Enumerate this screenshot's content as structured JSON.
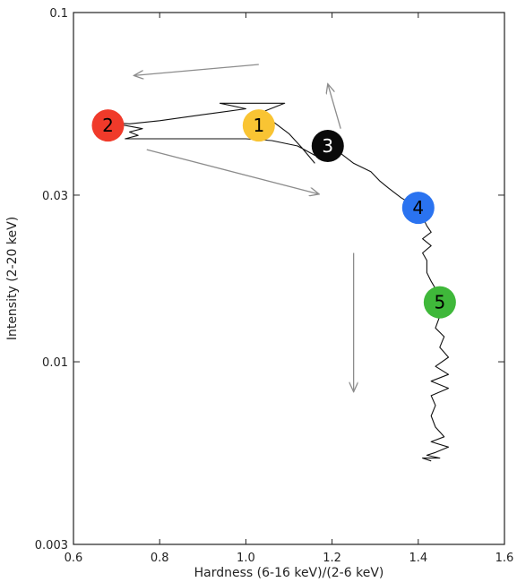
{
  "chart_data": {
    "type": "line",
    "title": "",
    "xlabel": "Hardness (6-16 keV)/(2-6 keV)",
    "ylabel": "Intensity (2-20 keV)",
    "xlim": [
      0.6,
      1.6
    ],
    "ylim": [
      0.003,
      0.1
    ],
    "y_scale": "log",
    "grid": false,
    "x_ticks": [
      {
        "value": 0.6,
        "label": "0.6"
      },
      {
        "value": 0.8,
        "label": "0.8"
      },
      {
        "value": 1.0,
        "label": "1.0"
      },
      {
        "value": 1.2,
        "label": "1.2"
      },
      {
        "value": 1.4,
        "label": "1.4"
      },
      {
        "value": 1.6,
        "label": "1.6"
      }
    ],
    "y_ticks": [
      {
        "value": 0.1,
        "label": "0.1"
      },
      {
        "value": 0.03,
        "label": "0.03"
      },
      {
        "value": 0.01,
        "label": "0.01"
      },
      {
        "value": 0.003,
        "label": "0.003"
      }
    ],
    "series": [
      {
        "color": "#111111",
        "points": [
          [
            1.16,
            0.037
          ],
          [
            1.13,
            0.041
          ],
          [
            1.1,
            0.045
          ],
          [
            1.06,
            0.049
          ],
          [
            1.04,
            0.052
          ],
          [
            1.09,
            0.055
          ],
          [
            1.02,
            0.055
          ],
          [
            0.94,
            0.055
          ],
          [
            1.0,
            0.053
          ],
          [
            0.9,
            0.051
          ],
          [
            0.8,
            0.049
          ],
          [
            0.73,
            0.048
          ],
          [
            0.68,
            0.0485
          ],
          [
            0.72,
            0.0475
          ],
          [
            0.76,
            0.0465
          ],
          [
            0.73,
            0.0455
          ],
          [
            0.75,
            0.0445
          ],
          [
            0.72,
            0.0435
          ],
          [
            0.76,
            0.0435
          ],
          [
            0.82,
            0.0435
          ],
          [
            0.9,
            0.0435
          ],
          [
            1.0,
            0.0435
          ],
          [
            1.06,
            0.043
          ],
          [
            1.12,
            0.0415
          ],
          [
            1.16,
            0.039
          ],
          [
            1.19,
            0.0415
          ],
          [
            1.22,
            0.0395
          ],
          [
            1.25,
            0.037
          ],
          [
            1.29,
            0.035
          ],
          [
            1.31,
            0.033
          ],
          [
            1.33,
            0.0315
          ],
          [
            1.36,
            0.0295
          ],
          [
            1.38,
            0.0285
          ],
          [
            1.4,
            0.0275
          ],
          [
            1.41,
            0.026
          ],
          [
            1.42,
            0.0245
          ],
          [
            1.43,
            0.0235
          ],
          [
            1.41,
            0.0225
          ],
          [
            1.43,
            0.0215
          ],
          [
            1.41,
            0.0205
          ],
          [
            1.42,
            0.0195
          ],
          [
            1.42,
            0.018
          ],
          [
            1.43,
            0.017
          ],
          [
            1.44,
            0.0162
          ],
          [
            1.45,
            0.0155
          ],
          [
            1.43,
            0.0145
          ],
          [
            1.45,
            0.0135
          ],
          [
            1.44,
            0.0125
          ],
          [
            1.46,
            0.0118
          ],
          [
            1.45,
            0.011
          ],
          [
            1.47,
            0.0103
          ],
          [
            1.44,
            0.0097
          ],
          [
            1.47,
            0.0092
          ],
          [
            1.43,
            0.0088
          ],
          [
            1.47,
            0.0084
          ],
          [
            1.43,
            0.008
          ],
          [
            1.44,
            0.0075
          ],
          [
            1.43,
            0.007
          ],
          [
            1.44,
            0.0065
          ],
          [
            1.46,
            0.0061
          ],
          [
            1.43,
            0.0059
          ],
          [
            1.47,
            0.0057
          ],
          [
            1.44,
            0.0055
          ],
          [
            1.42,
            0.0054
          ],
          [
            1.45,
            0.0053
          ],
          [
            1.41,
            0.0053
          ],
          [
            1.43,
            0.0052
          ]
        ]
      }
    ],
    "markers": [
      {
        "label": "1",
        "x": 1.03,
        "y": 0.0475,
        "color": "#f9c433"
      },
      {
        "label": "2",
        "x": 0.68,
        "y": 0.0475,
        "color": "#f03a2a"
      },
      {
        "label": "3",
        "x": 1.19,
        "y": 0.0415,
        "color": "#0a0a0a"
      },
      {
        "label": "4",
        "x": 1.4,
        "y": 0.0276,
        "color": "#2a73f0"
      },
      {
        "label": "5",
        "x": 1.45,
        "y": 0.0148,
        "color": "#3fb83a"
      }
    ],
    "arrows": [
      {
        "from": [
          1.03,
          0.071
        ],
        "to": [
          0.74,
          0.066
        ]
      },
      {
        "from": [
          0.77,
          0.0405
        ],
        "to": [
          1.17,
          0.0302
        ]
      },
      {
        "from": [
          1.22,
          0.0465
        ],
        "to": [
          1.19,
          0.0625
        ]
      },
      {
        "from": [
          1.25,
          0.0205
        ],
        "to": [
          1.25,
          0.0082
        ]
      }
    ],
    "colors": {
      "axis": "#222222",
      "arrow": "#8c8c8c",
      "light_label_text": "#000000",
      "dark_label_text": "#ffffff"
    }
  }
}
